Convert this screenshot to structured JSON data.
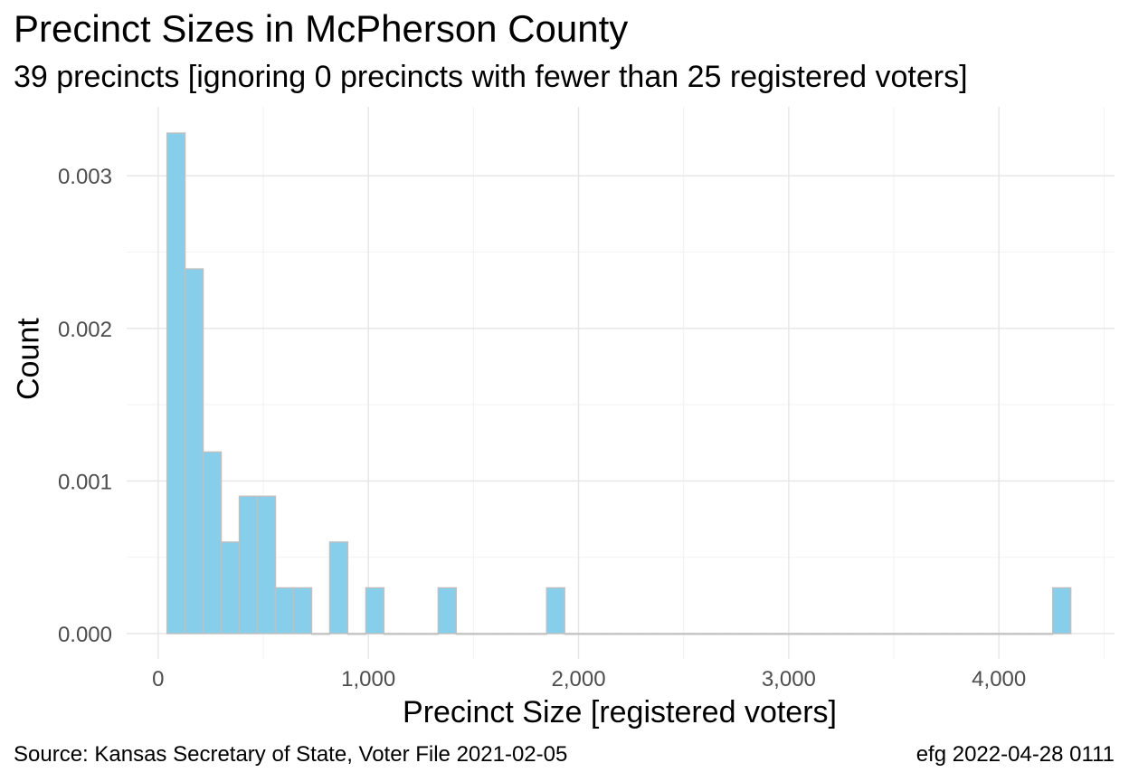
{
  "chart_data": {
    "type": "bar",
    "title": "Precinct Sizes in McPherson County",
    "subtitle": "39 precincts [ignoring 0 precincts with fewer than 25 registered voters]",
    "xlabel": "Precinct Size [registered voters]",
    "ylabel": "Count",
    "caption_left": "Source:  Kansas Secretary of State, Voter File  2021-02-05",
    "caption_right": "efg 2022-04-28 0111",
    "xlim": [
      -150,
      4550
    ],
    "ylim": [
      0,
      0.00348
    ],
    "x_ticks": [
      0,
      1000,
      2000,
      3000,
      4000
    ],
    "x_tick_labels": [
      "0",
      "1,000",
      "2,000",
      "3,000",
      "4,000"
    ],
    "y_ticks": [
      0,
      0.001,
      0.002,
      0.003
    ],
    "y_tick_labels": [
      "0.000",
      "0.001",
      "0.002",
      "0.003"
    ],
    "bin_width": 86,
    "bins_start": [
      42,
      128,
      214,
      300,
      386,
      472,
      558,
      644,
      730,
      816,
      902,
      988,
      1074,
      1160,
      1246,
      1332,
      1418,
      1504,
      1590,
      1676,
      1762,
      1848,
      1934,
      2020,
      2106,
      2192,
      2278,
      2364,
      2450,
      2536,
      2622,
      2708,
      2794,
      2880,
      2966,
      3052,
      3138,
      3224,
      3310,
      3396,
      3482,
      3568,
      3654,
      3740,
      3826,
      3912,
      3998,
      4084,
      4170,
      4256
    ],
    "values": [
      0.00328,
      0.00239,
      0.00119,
      0.0006,
      0.0009,
      0.0009,
      0.0003,
      0.0003,
      0,
      0.0006,
      0,
      0.0003,
      0,
      0,
      0,
      0.0003,
      0,
      0,
      0,
      0,
      0,
      0.0003,
      0,
      0,
      0,
      0,
      0,
      0,
      0,
      0,
      0,
      0,
      0,
      0,
      0,
      0,
      0,
      0,
      0,
      0,
      0,
      0,
      0,
      0,
      0,
      0,
      0,
      0,
      0,
      0.0003
    ],
    "fill_color": "#87CEEB",
    "edge_color": "#c0c0c0",
    "grid": true,
    "legend": "none"
  }
}
